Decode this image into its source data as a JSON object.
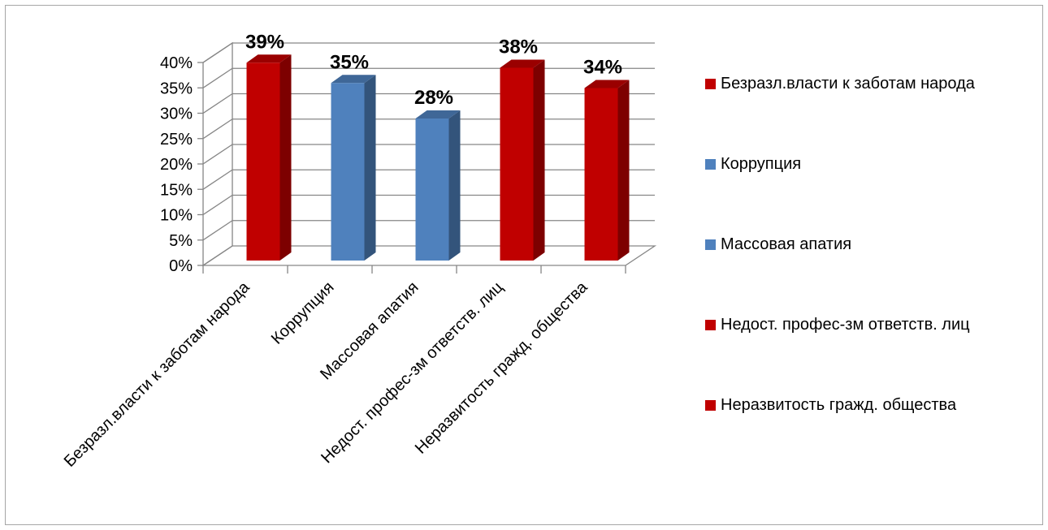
{
  "chart_data": {
    "type": "bar",
    "categories": [
      "Безразл.власти к заботам народа",
      "Коррупция",
      "Массовая апатия",
      "Недост. профес-зм ответств. лиц",
      "Неразвитость гражд. общества"
    ],
    "values": [
      39,
      35,
      28,
      38,
      34
    ],
    "data_labels": [
      "39%",
      "35%",
      "28%",
      "38%",
      "34%"
    ],
    "colors": [
      "#c00000",
      "#4f81bd",
      "#4f81bd",
      "#c00000",
      "#c00000"
    ],
    "title": "",
    "xlabel": "",
    "ylabel": "",
    "ylim": [
      0,
      40
    ],
    "y_ticks": [
      "0%",
      "5%",
      "10%",
      "15%",
      "20%",
      "25%",
      "30%",
      "35%",
      "40%"
    ],
    "grid": true,
    "style": "3d-column",
    "legend": {
      "placement": "right",
      "entries": [
        "Безразл.власти к заботам народа",
        "Коррупция",
        "Массовая апатия",
        "Недост. профес-зм ответств. лиц",
        "Неразвитость гражд. общества"
      ]
    }
  }
}
